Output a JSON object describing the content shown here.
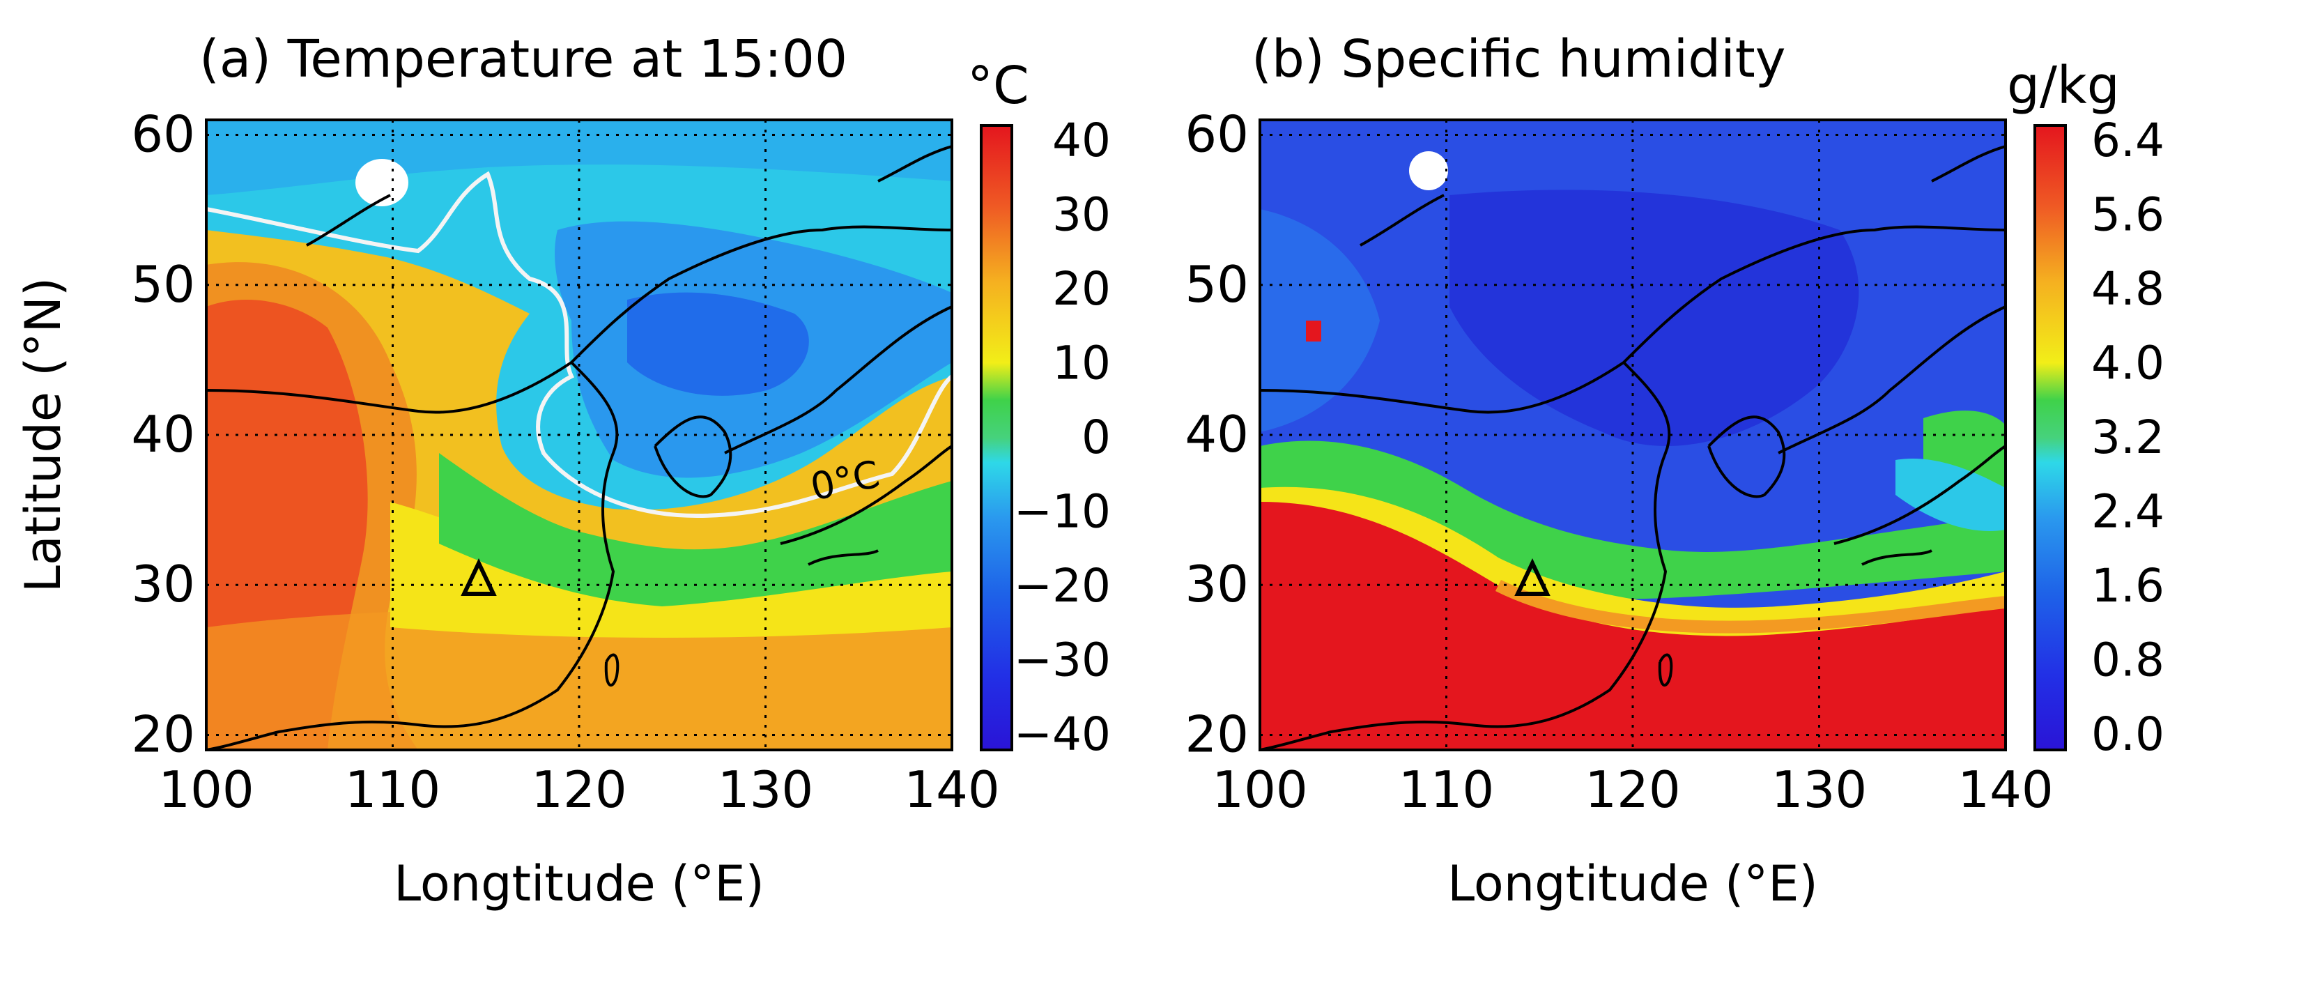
{
  "chart_data": [
    {
      "type": "heatmap",
      "title": "(a) Temperature at 15:00",
      "unit": "°C",
      "xlabel": "Longtitude (°E)",
      "ylabel": "Latitude (°N)",
      "xlim": [
        100,
        140
      ],
      "ylim": [
        19,
        61
      ],
      "x_ticks": [
        "100",
        "110",
        "120",
        "130",
        "140"
      ],
      "y_ticks": [
        "20",
        "30",
        "40",
        "50",
        "60"
      ],
      "grid": true,
      "colorbar": {
        "min": -40,
        "max": 40,
        "ticks": [
          "40",
          "30",
          "20",
          "10",
          "0",
          "−10",
          "−20",
          "−30",
          "−40"
        ]
      },
      "contour_label": "0°C",
      "marker": {
        "symbol": "triangle",
        "x": 114.5,
        "y": 30.5
      }
    },
    {
      "type": "heatmap",
      "title": "(b) Specific humidity",
      "unit": "g/kg",
      "xlabel": "Longtitude (°E)",
      "ylabel": "",
      "xlim": [
        100,
        140
      ],
      "ylim": [
        19,
        61
      ],
      "x_ticks": [
        "100",
        "110",
        "120",
        "130",
        "140"
      ],
      "y_ticks": [
        "20",
        "30",
        "40",
        "50",
        "60"
      ],
      "grid": true,
      "colorbar": {
        "min": 0.0,
        "max": 6.4,
        "ticks": [
          "6.4",
          "5.6",
          "4.8",
          "4.0",
          "3.2",
          "2.4",
          "1.6",
          "0.8",
          "0.0"
        ]
      },
      "marker": {
        "symbol": "triangle",
        "x": 114.5,
        "y": 30.5
      }
    }
  ]
}
